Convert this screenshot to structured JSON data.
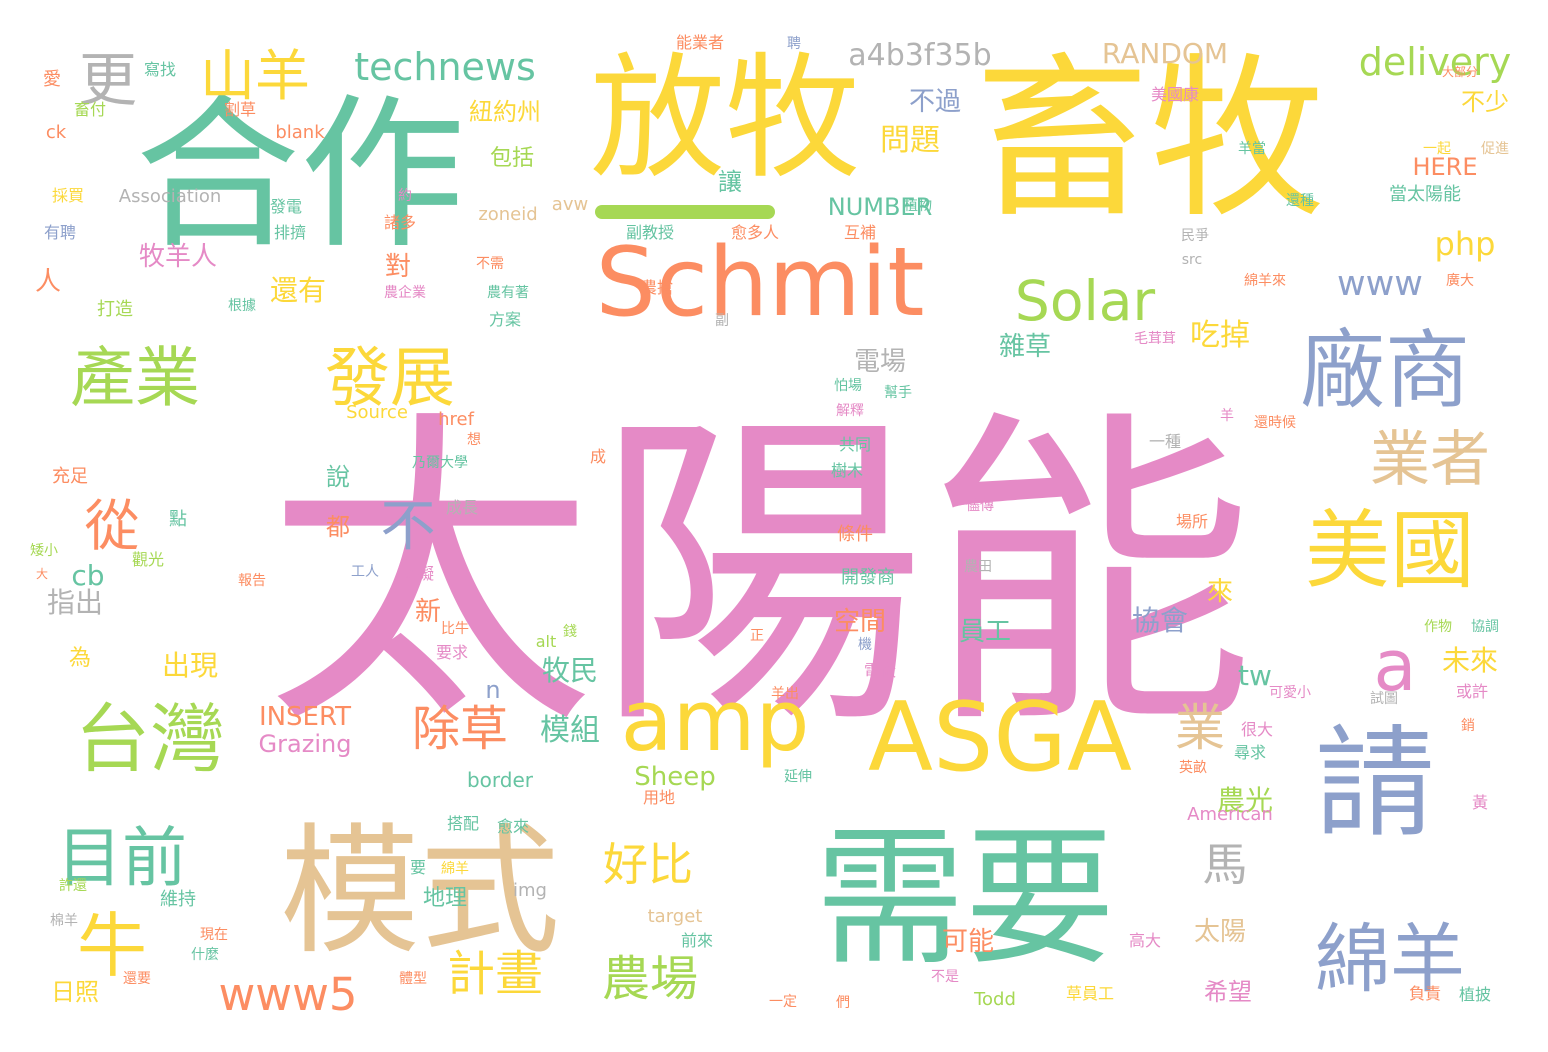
{
  "palette": {
    "pink": "#e58ac6",
    "green": "#66c4a2",
    "yellow": "#fcd83a",
    "orange": "#fc8d62",
    "blue": "#8da0cb",
    "lime": "#a6d854",
    "tan": "#e5c494",
    "gray": "#b3b3b3"
  },
  "words": [
    "太陽能",
    "畜牧",
    "合作",
    "放牧",
    "需要",
    "模式",
    "請",
    "Schmit",
    "ASGA",
    "amp",
    "廠商",
    "美國",
    "台灣",
    "產業",
    "發展",
    "綿羊",
    "牛",
    "目前",
    "業者",
    "從",
    "山羊",
    "更",
    "Solar",
    "technews",
    "delivery",
    "a4b3f35b",
    "RANDOM",
    "除草",
    "計畫",
    "農場",
    "好比",
    "www5",
    "馬",
    "a",
    "不",
    "業",
    "www",
    "php",
    "農光",
    "Sheep",
    "Grazing",
    "INSERT",
    "模組",
    "紐約州",
    "不過",
    "問題",
    "牧羊人",
    "吃掉",
    "雜草",
    "電場",
    "還有",
    "對",
    "人",
    "包括",
    "讓",
    "NUMBER",
    "不少",
    "HERE",
    "當太陽能",
    "zoneid",
    "avw",
    "cb",
    "tw",
    "未來",
    "牧民",
    "新",
    "協會",
    "來",
    "員工",
    "空間",
    "出現",
    "指出",
    "說",
    "都",
    "可能",
    "希望",
    "太陽",
    "地理",
    "日照",
    "border",
    "American",
    "Association",
    "Source",
    "href",
    "alt",
    "img",
    "target",
    "Todd",
    "blank",
    "ck",
    "src",
    "能業者",
    "美國康",
    "寫找",
    "畜付",
    "割草",
    "愛",
    "採買",
    "有聘",
    "發電",
    "約",
    "諸多",
    "排擠",
    "副教授",
    "愈多人",
    "互補",
    "植物",
    "民爭",
    "還種",
    "綿羊來",
    "廣大",
    "毛茸茸",
    "打造",
    "根據",
    "農企業",
    "農搶",
    "農有著",
    "方案",
    "不需",
    "怕場",
    "解釋",
    "幫手",
    "共同",
    "樹木",
    "還時候",
    "一種",
    "乃爾大學",
    "成",
    "充足",
    "點",
    "成長",
    "條件",
    "開發商",
    "農田",
    "場所",
    "儘傳",
    "妨礙",
    "工人",
    "報告",
    "觀光",
    "比牛",
    "要求",
    "錢",
    "正",
    "機",
    "電廠",
    "可愛小",
    "試圖",
    "或許",
    "很大",
    "尋求",
    "黃",
    "英畝",
    "用地",
    "延伸",
    "搭配",
    "愈來",
    "要",
    "綿羊",
    "維持",
    "前來",
    "高大",
    "不是",
    "負責",
    "植披",
    "草員工",
    "什麼",
    "還要",
    "體型",
    "一定",
    "們",
    "作物",
    "協調",
    "銷",
    "促進",
    "一起",
    "羊當",
    "大部分",
    "聘",
    "想",
    "羊",
    "許還",
    "現在",
    "棉羊",
    "矮小",
    "大",
    "為",
    "n",
    "羊出",
    "副"
  ]
}
